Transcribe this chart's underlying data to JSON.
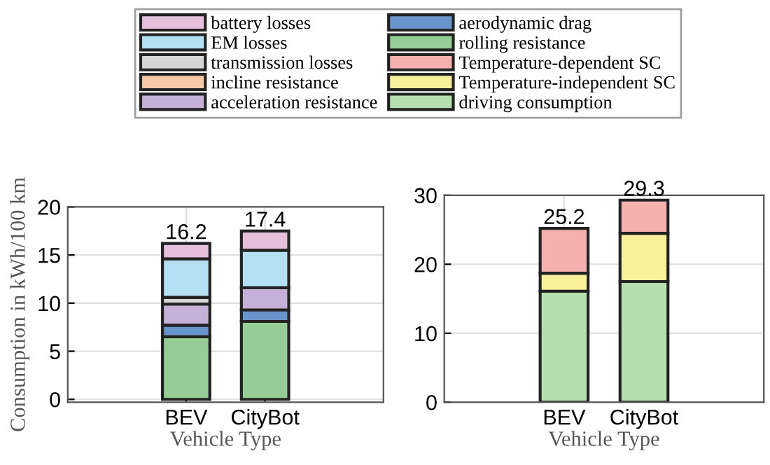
{
  "chart_data": [
    {
      "type": "bar",
      "stacked": true,
      "categories": [
        "BEV",
        "CityBot"
      ],
      "xlabel": "Vehicle Type",
      "ylabel": "Consumption in kWh/100 km",
      "ylim": [
        -0.3,
        20
      ],
      "yticks": [
        0,
        5,
        10,
        15,
        20
      ],
      "grid": true,
      "legend": "top",
      "totals": [
        "16.2",
        "17.4"
      ],
      "series": [
        {
          "name": "rolling resistance",
          "color": "#96cc96",
          "values": [
            6.5,
            8.1
          ]
        },
        {
          "name": "aerodynamic drag",
          "color": "#6a94cc",
          "values": [
            1.2,
            1.2
          ]
        },
        {
          "name": "acceleration resistance",
          "color": "#c5b0d8",
          "values": [
            2.2,
            2.3
          ]
        },
        {
          "name": "incline resistance",
          "color": "#f7c9a6",
          "values": [
            0,
            0
          ]
        },
        {
          "name": "transmission losses",
          "color": "#d6d6d6",
          "values": [
            0.7,
            null
          ]
        },
        {
          "name": "EM losses",
          "color": "#b3e0f2",
          "values": [
            4.0,
            3.9
          ]
        },
        {
          "name": "battery losses",
          "color": "#e6bfdc",
          "values": [
            1.6,
            2.0
          ]
        }
      ]
    },
    {
      "type": "bar",
      "stacked": true,
      "categories": [
        "BEV",
        "CityBot"
      ],
      "xlabel": "Vehicle Type",
      "ylim": [
        0,
        30
      ],
      "yticks": [
        0,
        10,
        20,
        30
      ],
      "grid": true,
      "legend": "top",
      "totals": [
        "25.2",
        "29.3"
      ],
      "series": [
        {
          "name": "driving consumption",
          "color": "#b6dfb0",
          "values": [
            16.1,
            17.5
          ]
        },
        {
          "name": "Temperature-independent SC",
          "color": "#f8f09a",
          "values": [
            2.6,
            7.0
          ]
        },
        {
          "name": "Temperature-dependent SC",
          "color": "#f5b0b0",
          "values": [
            6.5,
            4.8
          ]
        }
      ]
    }
  ]
}
